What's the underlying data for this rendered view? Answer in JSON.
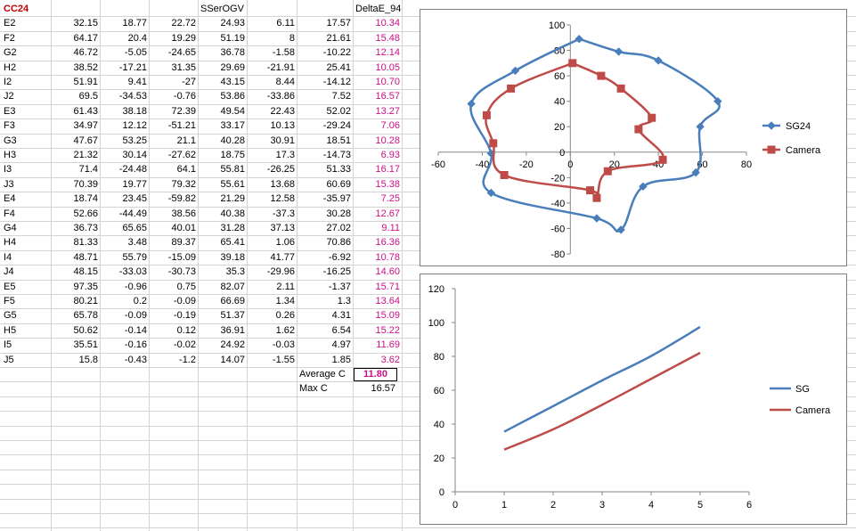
{
  "sheet": {
    "title": "CC24",
    "header_mid": "SSerOGV",
    "header_delta": "DeltaE_94",
    "rows": [
      {
        "id": "E2",
        "v": [
          "32.15",
          "18.77",
          "22.72",
          "24.93",
          "6.11",
          "17.57"
        ],
        "de": "10.34"
      },
      {
        "id": "F2",
        "v": [
          "64.17",
          "20.4",
          "19.29",
          "51.19",
          "8",
          "21.61"
        ],
        "de": "15.48"
      },
      {
        "id": "G2",
        "v": [
          "46.72",
          "-5.05",
          "-24.65",
          "36.78",
          "-1.58",
          "-10.22"
        ],
        "de": "12.14"
      },
      {
        "id": "H2",
        "v": [
          "38.52",
          "-17.21",
          "31.35",
          "29.69",
          "-21.91",
          "25.41"
        ],
        "de": "10.05"
      },
      {
        "id": "I2",
        "v": [
          "51.91",
          "9.41",
          "-27",
          "43.15",
          "8.44",
          "-14.12"
        ],
        "de": "10.70"
      },
      {
        "id": "J2",
        "v": [
          "69.5",
          "-34.53",
          "-0.76",
          "53.86",
          "-33.86",
          "7.52"
        ],
        "de": "16.57"
      },
      {
        "id": "E3",
        "v": [
          "61.43",
          "38.18",
          "72.39",
          "49.54",
          "22.43",
          "52.02"
        ],
        "de": "13.27"
      },
      {
        "id": "F3",
        "v": [
          "34.97",
          "12.12",
          "-51.21",
          "33.17",
          "10.13",
          "-29.24"
        ],
        "de": "7.06"
      },
      {
        "id": "G3",
        "v": [
          "47.67",
          "53.25",
          "21.1",
          "40.28",
          "30.91",
          "18.51"
        ],
        "de": "10.28"
      },
      {
        "id": "H3",
        "v": [
          "21.32",
          "30.14",
          "-27.62",
          "18.75",
          "17.3",
          "-14.73"
        ],
        "de": "6.93"
      },
      {
        "id": "I3",
        "v": [
          "71.4",
          "-24.48",
          "64.1",
          "55.81",
          "-26.25",
          "51.33"
        ],
        "de": "16.17"
      },
      {
        "id": "J3",
        "v": [
          "70.39",
          "19.77",
          "79.32",
          "55.61",
          "13.68",
          "60.69"
        ],
        "de": "15.38"
      },
      {
        "id": "E4",
        "v": [
          "18.74",
          "23.45",
          "-59.82",
          "21.29",
          "12.58",
          "-35.97"
        ],
        "de": "7.25"
      },
      {
        "id": "F4",
        "v": [
          "52.66",
          "-44.49",
          "38.56",
          "40.38",
          "-37.3",
          "30.28"
        ],
        "de": "12.67"
      },
      {
        "id": "G4",
        "v": [
          "36.73",
          "65.65",
          "40.01",
          "31.28",
          "37.13",
          "27.02"
        ],
        "de": "9.11"
      },
      {
        "id": "H4",
        "v": [
          "81.33",
          "3.48",
          "89.37",
          "65.41",
          "1.06",
          "70.86"
        ],
        "de": "16.36"
      },
      {
        "id": "I4",
        "v": [
          "48.71",
          "55.79",
          "-15.09",
          "39.18",
          "41.77",
          "-6.92"
        ],
        "de": "10.78"
      },
      {
        "id": "J4",
        "v": [
          "48.15",
          "-33.03",
          "-30.73",
          "35.3",
          "-29.96",
          "-16.25"
        ],
        "de": "14.60"
      },
      {
        "id": "E5",
        "v": [
          "97.35",
          "-0.96",
          "0.75",
          "82.07",
          "2.11",
          "-1.37"
        ],
        "de": "15.71"
      },
      {
        "id": "F5",
        "v": [
          "80.21",
          "0.2",
          "-0.09",
          "66.69",
          "1.34",
          "1.3"
        ],
        "de": "13.64"
      },
      {
        "id": "G5",
        "v": [
          "65.78",
          "-0.09",
          "-0.19",
          "51.37",
          "0.26",
          "4.31"
        ],
        "de": "15.09"
      },
      {
        "id": "H5",
        "v": [
          "50.62",
          "-0.14",
          "0.12",
          "36.91",
          "1.62",
          "6.54"
        ],
        "de": "15.22"
      },
      {
        "id": "I5",
        "v": [
          "35.51",
          "-0.16",
          "-0.02",
          "24.92",
          "-0.03",
          "4.97"
        ],
        "de": "11.69"
      },
      {
        "id": "J5",
        "v": [
          "15.8",
          "-0.43",
          "-1.2",
          "14.07",
          "-1.55",
          "1.85"
        ],
        "de": "3.62"
      }
    ],
    "average_label": "Average C",
    "average_value": "11.80",
    "max_label": "Max C",
    "max_value": "16.57"
  },
  "colors": {
    "sg": "#4a7ebb",
    "camera": "#be4b48",
    "magenta": "#cc0f86",
    "title_red": "#c00000"
  },
  "chart_data": [
    {
      "type": "scatter",
      "title": "",
      "xlim": [
        -60,
        80
      ],
      "ylim": [
        -80,
        100
      ],
      "xticks": [
        "-60",
        "-40",
        "-20",
        "0",
        "20",
        "40",
        "60",
        "80"
      ],
      "yticks": [
        "-80",
        "-60",
        "-40",
        "-20",
        "0",
        "20",
        "40",
        "60",
        "80",
        "100"
      ],
      "legend_position": "right",
      "series": [
        {
          "name": "SG24",
          "marker": "diamond",
          "color": "#4a7ebb",
          "points": [
            [
              4,
              89
            ],
            [
              22,
              79
            ],
            [
              40,
              72
            ],
            [
              67,
              40
            ],
            [
              59,
              20
            ],
            [
              57,
              -16
            ],
            [
              33,
              -27
            ],
            [
              23,
              -61
            ],
            [
              12,
              -52
            ],
            [
              -36,
              -32
            ],
            [
              -36,
              -1
            ],
            [
              -45,
              38
            ],
            [
              -25,
              64
            ],
            [
              4,
              89
            ]
          ]
        },
        {
          "name": "Camera",
          "marker": "square",
          "color": "#be4b48",
          "points": [
            [
              1,
              70
            ],
            [
              14,
              60
            ],
            [
              23,
              50
            ],
            [
              37,
              27
            ],
            [
              31,
              18
            ],
            [
              42,
              -6
            ],
            [
              17,
              -15
            ],
            [
              12,
              -36
            ],
            [
              9,
              -30
            ],
            [
              -30,
              -18
            ],
            [
              -35,
              7
            ],
            [
              -38,
              29
            ],
            [
              -27,
              50
            ],
            [
              1,
              70
            ]
          ]
        }
      ]
    },
    {
      "type": "line",
      "title": "",
      "x": [
        1,
        2,
        3,
        4,
        5
      ],
      "xlim": [
        0,
        6
      ],
      "ylim": [
        0,
        120
      ],
      "xticks": [
        "0",
        "1",
        "2",
        "3",
        "4",
        "5",
        "6"
      ],
      "yticks": [
        "0",
        "20",
        "40",
        "60",
        "80",
        "100",
        "120"
      ],
      "legend_position": "right",
      "series": [
        {
          "name": "SG",
          "color": "#4a7ebb",
          "values": [
            35.5,
            50.6,
            65.8,
            80.2,
            97.4
          ]
        },
        {
          "name": "Camera",
          "color": "#be4b48",
          "values": [
            24.9,
            36.9,
            51.4,
            66.7,
            82.1
          ]
        }
      ]
    }
  ]
}
